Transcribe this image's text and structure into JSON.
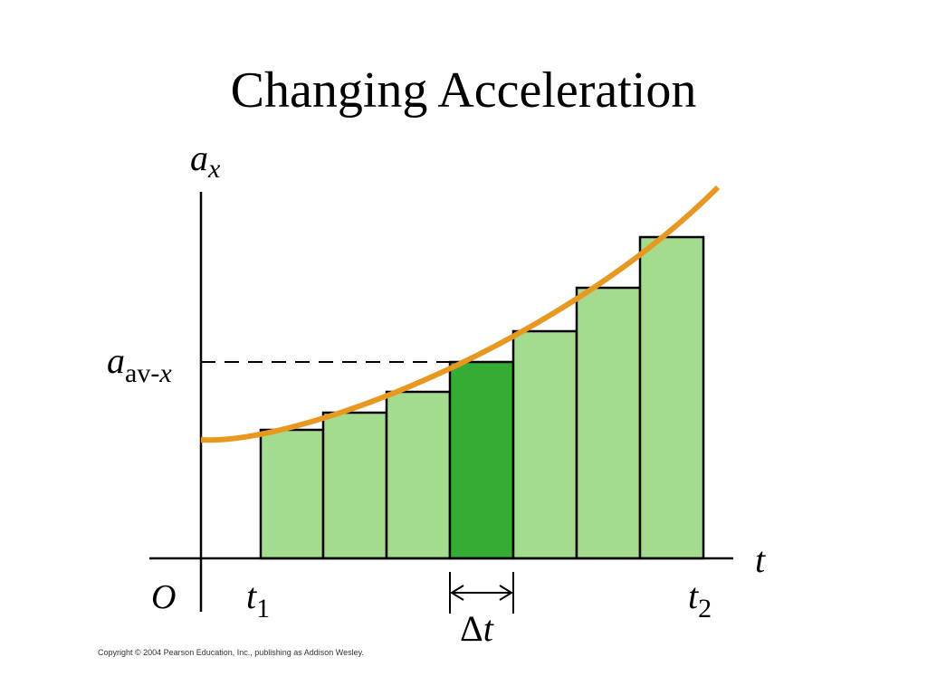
{
  "title": "Changing Acceleration",
  "y_axis_label": {
    "main": "a",
    "sub": "x"
  },
  "average_label": {
    "main": "a",
    "sub_upright": "av-",
    "sub_italic": "x"
  },
  "x_axis_label": "t",
  "origin_label": "O",
  "t1_label": {
    "main": "t",
    "sub": "1"
  },
  "t2_label": {
    "main": "t",
    "sub": "2"
  },
  "interval_label": {
    "delta": "Δ",
    "main": "t"
  },
  "copyright": "Copyright © 2004 Pearson Education, Inc., publishing as Addison Wesley."
}
